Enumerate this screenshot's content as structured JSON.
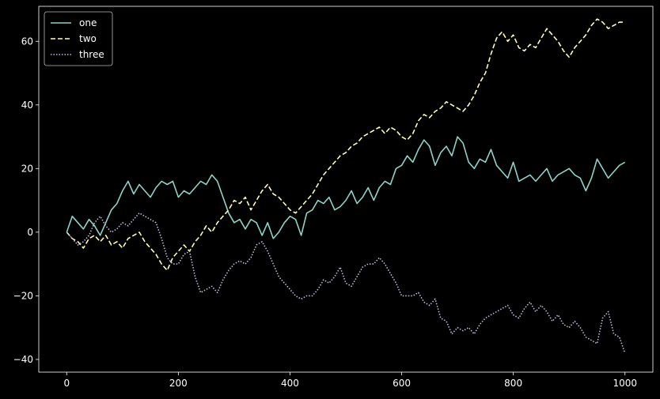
{
  "chart_data": {
    "type": "line",
    "title": "",
    "xlabel": "",
    "ylabel": "",
    "xlim": [
      -50,
      1050
    ],
    "ylim": [
      -44,
      71
    ],
    "xticks": [
      0,
      200,
      400,
      600,
      800,
      1000
    ],
    "yticks": [
      -40,
      -20,
      0,
      20,
      40,
      60
    ],
    "grid": false,
    "legend_position": "top-left",
    "background": "#000000",
    "foreground": "#ffffff",
    "series": [
      {
        "name": "one",
        "color": "#8dd3c7",
        "style": "solid",
        "x": [
          0,
          10,
          20,
          30,
          40,
          50,
          60,
          70,
          80,
          90,
          100,
          110,
          120,
          130,
          140,
          150,
          160,
          170,
          180,
          190,
          200,
          210,
          220,
          230,
          240,
          250,
          260,
          270,
          280,
          290,
          300,
          310,
          320,
          330,
          340,
          350,
          360,
          370,
          380,
          390,
          400,
          410,
          420,
          430,
          440,
          450,
          460,
          470,
          480,
          490,
          500,
          510,
          520,
          530,
          540,
          550,
          560,
          570,
          580,
          590,
          600,
          610,
          620,
          630,
          640,
          650,
          660,
          670,
          680,
          690,
          700,
          710,
          720,
          730,
          740,
          750,
          760,
          770,
          780,
          790,
          800,
          810,
          820,
          830,
          840,
          850,
          860,
          870,
          880,
          890,
          900,
          910,
          920,
          930,
          940,
          950,
          960,
          970,
          980,
          990,
          1000
        ],
        "values": [
          0,
          5,
          3,
          1,
          4,
          2,
          -1,
          3,
          7,
          9,
          13,
          16,
          12,
          15,
          13,
          11,
          14,
          16,
          15,
          16,
          11,
          13,
          12,
          14,
          16,
          15,
          18,
          16,
          11,
          6,
          3,
          4,
          1,
          4,
          3,
          -1,
          3,
          -2,
          0,
          3,
          5,
          4,
          -1,
          6,
          7,
          10,
          9,
          11,
          7,
          8,
          10,
          13,
          9,
          11,
          14,
          10,
          14,
          16,
          15,
          20,
          21,
          24,
          22,
          26,
          29,
          27,
          21,
          25,
          27,
          24,
          30,
          28,
          22,
          20,
          23,
          22,
          26,
          21,
          19,
          17,
          22,
          16,
          17,
          18,
          16,
          18,
          20,
          16,
          18,
          19,
          20,
          18,
          17,
          13,
          17,
          23,
          20,
          17,
          19,
          21,
          22
        ]
      },
      {
        "name": "two",
        "color": "#ffffb3",
        "style": "dashed",
        "x": [
          0,
          10,
          20,
          30,
          40,
          50,
          60,
          70,
          80,
          90,
          100,
          110,
          120,
          130,
          140,
          150,
          160,
          170,
          180,
          190,
          200,
          210,
          220,
          230,
          240,
          250,
          260,
          270,
          280,
          290,
          300,
          310,
          320,
          330,
          340,
          350,
          360,
          370,
          380,
          390,
          400,
          410,
          420,
          430,
          440,
          450,
          460,
          470,
          480,
          490,
          500,
          510,
          520,
          530,
          540,
          550,
          560,
          570,
          580,
          590,
          600,
          610,
          620,
          630,
          640,
          650,
          660,
          670,
          680,
          690,
          700,
          710,
          720,
          730,
          740,
          750,
          760,
          770,
          780,
          790,
          800,
          810,
          820,
          830,
          840,
          850,
          860,
          870,
          880,
          890,
          900,
          910,
          920,
          930,
          940,
          950,
          960,
          970,
          980,
          990,
          1000
        ],
        "values": [
          0,
          -2,
          -3,
          -5,
          -2,
          -1,
          -3,
          -1,
          -4,
          -3,
          -5,
          -2,
          -1,
          0,
          -3,
          -5,
          -7,
          -10,
          -12,
          -8,
          -6,
          -4,
          -6,
          -3,
          -1,
          2,
          0,
          3,
          5,
          7,
          10,
          9,
          11,
          7,
          10,
          13,
          15,
          12,
          11,
          9,
          7,
          6,
          8,
          10,
          12,
          15,
          18,
          20,
          22,
          24,
          25,
          27,
          28,
          30,
          31,
          32,
          33,
          31,
          33,
          32,
          30,
          29,
          31,
          35,
          37,
          36,
          38,
          39,
          41,
          40,
          39,
          38,
          40,
          43,
          47,
          50,
          56,
          61,
          63,
          60,
          62,
          58,
          57,
          59,
          58,
          61,
          64,
          62,
          60,
          57,
          55,
          58,
          60,
          62,
          65,
          67,
          66,
          64,
          65,
          66,
          66
        ]
      },
      {
        "name": "three",
        "color": "#bebada",
        "style": "dotted",
        "x": [
          0,
          10,
          20,
          30,
          40,
          50,
          60,
          70,
          80,
          90,
          100,
          110,
          120,
          130,
          140,
          150,
          160,
          170,
          180,
          190,
          200,
          210,
          220,
          230,
          240,
          250,
          260,
          270,
          280,
          290,
          300,
          310,
          320,
          330,
          340,
          350,
          360,
          370,
          380,
          390,
          400,
          410,
          420,
          430,
          440,
          450,
          460,
          470,
          480,
          490,
          500,
          510,
          520,
          530,
          540,
          550,
          560,
          570,
          580,
          590,
          600,
          610,
          620,
          630,
          640,
          650,
          660,
          670,
          680,
          690,
          700,
          710,
          720,
          730,
          740,
          750,
          760,
          770,
          780,
          790,
          800,
          810,
          820,
          830,
          840,
          850,
          860,
          870,
          880,
          890,
          900,
          910,
          920,
          930,
          940,
          950,
          960,
          970,
          980,
          990,
          1000
        ],
        "values": [
          0,
          -2,
          -4,
          -3,
          -1,
          3,
          5,
          2,
          0,
          1,
          3,
          2,
          4,
          6,
          5,
          4,
          3,
          -2,
          -8,
          -10,
          -10,
          -7,
          -6,
          -14,
          -19,
          -18,
          -17,
          -19,
          -15,
          -12,
          -10,
          -9,
          -10,
          -8,
          -4,
          -3,
          -6,
          -10,
          -14,
          -16,
          -18,
          -20,
          -21,
          -20,
          -20,
          -18,
          -15,
          -16,
          -14,
          -11,
          -16,
          -17,
          -14,
          -11,
          -10,
          -10,
          -8,
          -10,
          -13,
          -16,
          -20,
          -20,
          -20,
          -19,
          -22,
          -23,
          -21,
          -27,
          -28,
          -32,
          -30,
          -31,
          -30,
          -32,
          -29,
          -27,
          -26,
          -25,
          -24,
          -23,
          -26,
          -27,
          -24,
          -22,
          -25,
          -23,
          -25,
          -28,
          -26,
          -29,
          -30,
          -28,
          -30,
          -33,
          -34,
          -35,
          -27,
          -25,
          -32,
          -33,
          -38
        ]
      }
    ]
  }
}
